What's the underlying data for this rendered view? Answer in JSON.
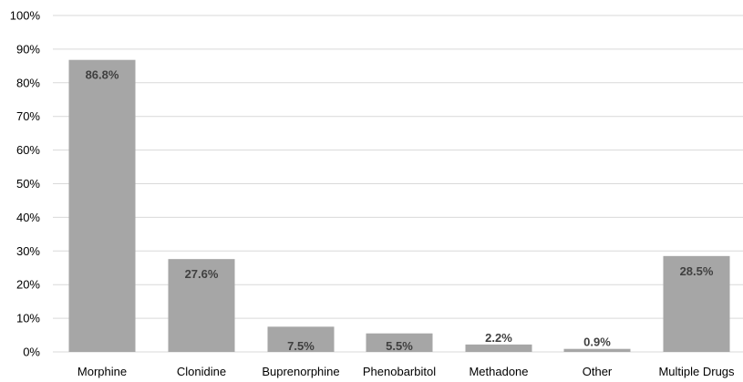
{
  "chart_data": {
    "type": "bar",
    "categories": [
      "Morphine",
      "Clonidine",
      "Buprenorphine",
      "Phenobarbitol",
      "Methadone",
      "Other",
      "Multiple Drugs"
    ],
    "values": [
      86.8,
      27.6,
      7.5,
      5.5,
      2.2,
      0.9,
      28.5
    ],
    "data_labels": [
      "86.8%",
      "27.6%",
      "7.5%",
      "5.5%",
      "2.2%",
      "0.9%",
      "28.5%"
    ],
    "y_ticks": [
      "0%",
      "10%",
      "20%",
      "30%",
      "40%",
      "50%",
      "60%",
      "70%",
      "80%",
      "90%",
      "100%"
    ],
    "ylim": [
      0,
      100
    ],
    "grid": true,
    "legend": "none",
    "colors": {
      "bar": "#a6a6a6",
      "grid": "#d9d9d9",
      "data_label": "#404040"
    }
  }
}
